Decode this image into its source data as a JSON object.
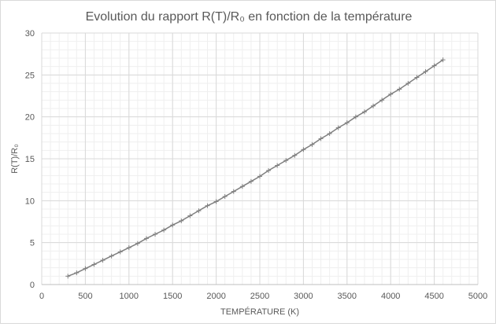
{
  "chart_data": {
    "type": "scatter",
    "title": "Evolution du rapport R(T)/R₀ en fonction de la température",
    "xlabel": "TEMPÉRATURE (K)",
    "ylabel": "R(T)/R₀",
    "xlim": [
      0,
      5000
    ],
    "ylim": [
      0,
      30
    ],
    "xticks": [
      0,
      500,
      1000,
      1500,
      2000,
      2500,
      3000,
      3500,
      4000,
      4500,
      5000
    ],
    "yticks": [
      0,
      5,
      10,
      15,
      20,
      25,
      30
    ],
    "grid": true,
    "line_color": "#7f7f7f",
    "series": [
      {
        "x": [
          300,
          400,
          500,
          600,
          700,
          800,
          900,
          1000,
          1100,
          1200,
          1300,
          1400,
          1500,
          1600,
          1700,
          1800,
          1900,
          2000,
          2100,
          2200,
          2300,
          2400,
          2500,
          2600,
          2700,
          2800,
          2900,
          3000,
          3100,
          3200,
          3300,
          3400,
          3500,
          3600,
          3700,
          3800,
          3900,
          4000,
          4100,
          4200,
          4300,
          4400,
          4500,
          4600
        ],
        "values": [
          1.0,
          1.4,
          1.9,
          2.4,
          2.9,
          3.4,
          3.9,
          4.4,
          4.9,
          5.5,
          6.0,
          6.5,
          7.1,
          7.6,
          8.2,
          8.8,
          9.4,
          9.9,
          10.5,
          11.1,
          11.7,
          12.3,
          12.9,
          13.6,
          14.2,
          14.8,
          15.4,
          16.1,
          16.7,
          17.4,
          18.0,
          18.7,
          19.3,
          20.0,
          20.6,
          21.3,
          22.0,
          22.7,
          23.3,
          24.0,
          24.7,
          25.4,
          26.1,
          26.8
        ]
      }
    ]
  }
}
